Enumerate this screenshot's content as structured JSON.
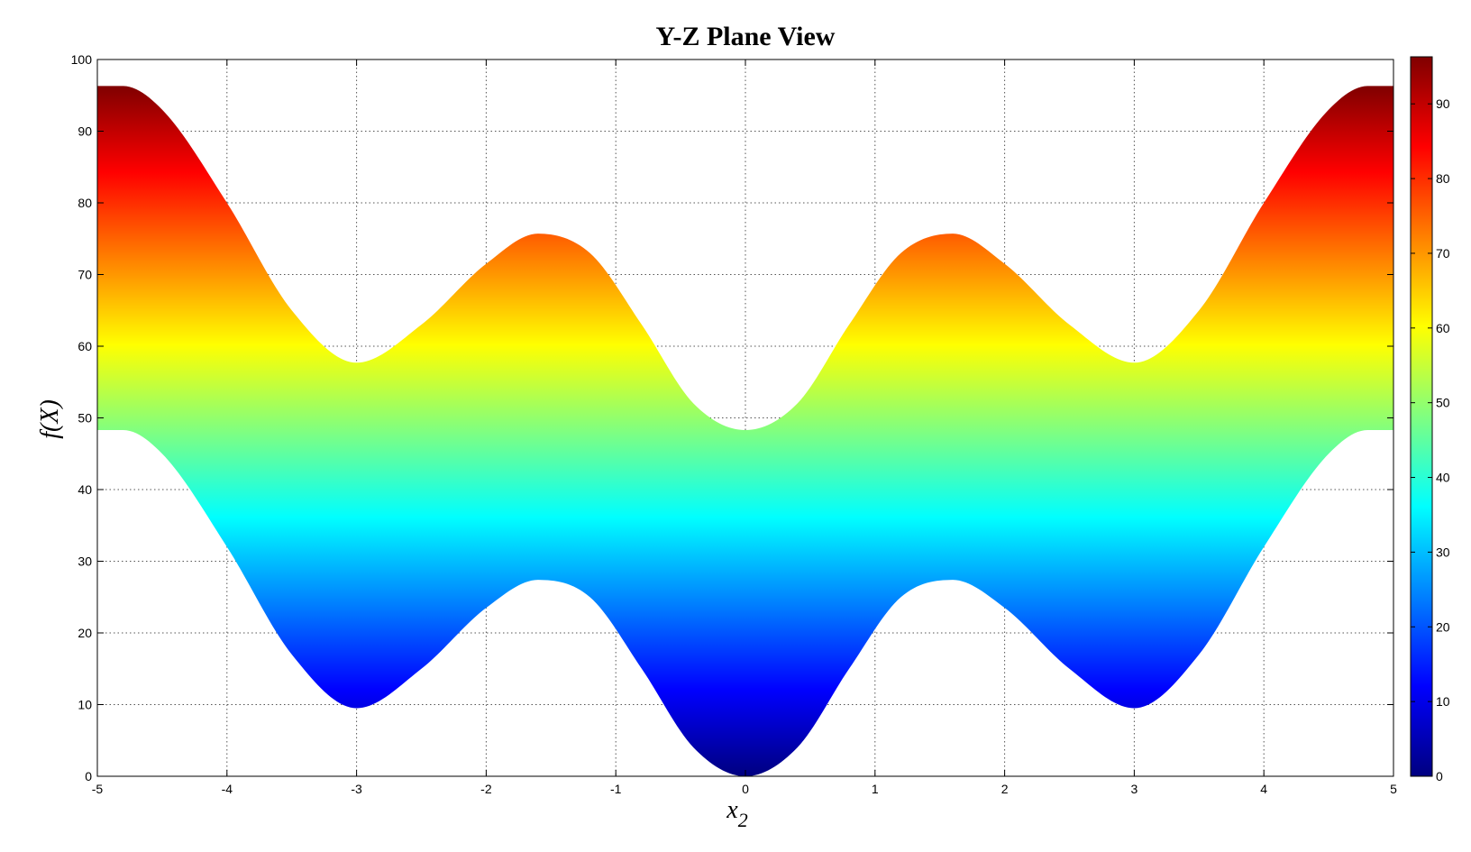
{
  "chart_data": {
    "type": "area",
    "title": "Y-Z Plane View",
    "xlabel": "x",
    "xlabel_subscript": "2",
    "ylabel": "f(X)",
    "xlim": [
      -5,
      5
    ],
    "ylim": [
      0,
      100
    ],
    "grid": true,
    "x_ticks": [
      "-5",
      "-4",
      "-3",
      "-2",
      "-1",
      "0",
      "1",
      "2",
      "3",
      "4",
      "5"
    ],
    "y_ticks": [
      "0",
      "10",
      "20",
      "30",
      "40",
      "50",
      "60",
      "70",
      "80",
      "90",
      "100"
    ],
    "upper_envelope": {
      "x": [
        -5,
        -4.8,
        -4.5,
        -4,
        -3.5,
        -3,
        -2.5,
        -2,
        -1.6,
        -1.2,
        -0.8,
        -0.4,
        0,
        0.4,
        0.8,
        1.2,
        1.6,
        2,
        2.5,
        3,
        3.5,
        4,
        4.5,
        4.8,
        5
      ],
      "y": [
        96.3,
        96.3,
        93,
        80,
        65,
        57.7,
        63,
        71.5,
        75.7,
        73,
        63,
        52,
        48.3,
        52,
        63,
        73,
        75.7,
        71.5,
        63,
        57.7,
        65,
        80,
        93,
        96.3,
        96.3
      ]
    },
    "lower_envelope": {
      "x": [
        -5,
        -4.8,
        -4.5,
        -4,
        -3.5,
        -3,
        -2.5,
        -2,
        -1.6,
        -1.2,
        -0.8,
        -0.4,
        0,
        0.4,
        0.8,
        1.2,
        1.6,
        2,
        2.5,
        3,
        3.5,
        4,
        4.5,
        4.8,
        5
      ],
      "y": [
        48.3,
        48.3,
        45,
        32,
        17,
        9.5,
        15,
        23.5,
        27.4,
        25,
        15,
        4,
        0,
        4,
        15,
        25,
        27.4,
        23.5,
        15,
        9.5,
        17,
        32,
        45,
        48.3,
        48.3
      ]
    },
    "colorbar": {
      "range": [
        0,
        96.3
      ],
      "ticks": [
        "0",
        "10",
        "20",
        "30",
        "40",
        "50",
        "60",
        "70",
        "80",
        "90"
      ],
      "colormap": "jet"
    }
  }
}
